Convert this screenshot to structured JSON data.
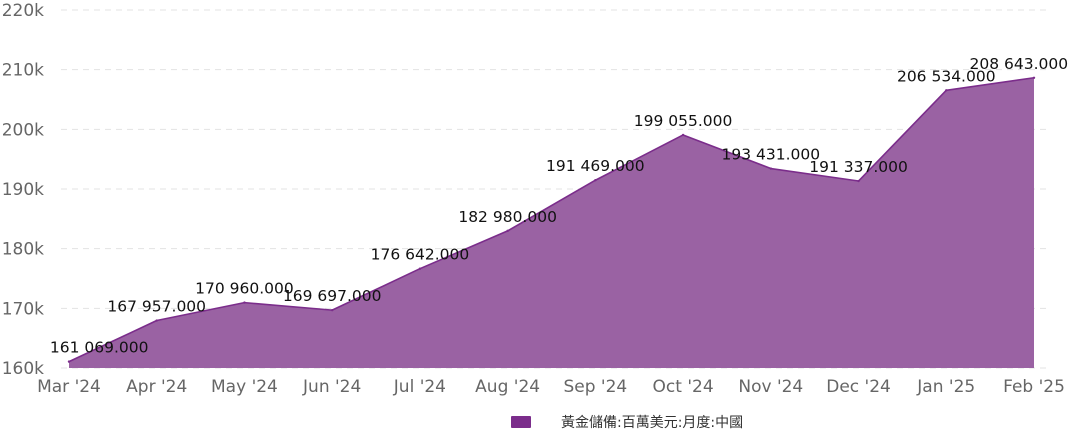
{
  "chart_data": {
    "type": "area",
    "categories": [
      "Mar '24",
      "Apr '24",
      "May '24",
      "Jun '24",
      "Jul '24",
      "Aug '24",
      "Sep '24",
      "Oct '24",
      "Nov '24",
      "Dec '24",
      "Jan '25",
      "Feb '25"
    ],
    "series": [
      {
        "name": "黃金儲備:百萬美元:月度:中國",
        "color": "#7b2d8b",
        "values": [
          161069,
          167957,
          170960,
          169697,
          176642,
          182980,
          191469,
          199055,
          193431,
          191337,
          206534,
          208643
        ],
        "data_labels": [
          "161 069.000",
          "167 957.000",
          "170 960.000",
          "169 697.000",
          "176 642.000",
          "182 980.000",
          "191 469.000",
          "199 055.000",
          "193 431.000",
          "191 337.000",
          "206 534.000",
          "208 643.000"
        ]
      }
    ],
    "title": "",
    "xlabel": "",
    "ylabel": "",
    "ylim": [
      160000,
      220000
    ],
    "y_ticks": [
      160000,
      170000,
      180000,
      190000,
      200000,
      210000,
      220000
    ],
    "y_tick_labels": [
      "160k",
      "170k",
      "180k",
      "190k",
      "200k",
      "210k",
      "220k"
    ],
    "grid": true,
    "legend_position": "bottom-center"
  }
}
